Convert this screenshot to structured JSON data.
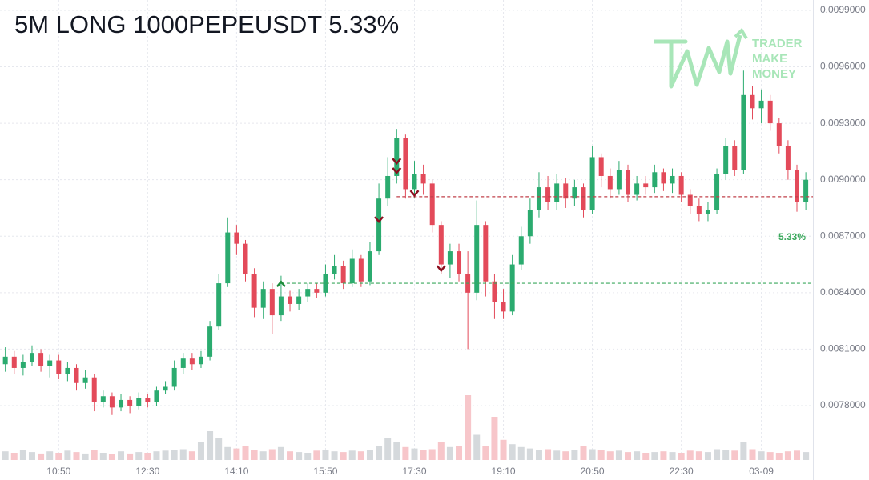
{
  "chart_data": {
    "type": "candlestick",
    "title": "5M LONG 1000PEPEUSDT 5.33%",
    "logo": [
      "TRADER",
      "MAKE",
      "MONEY"
    ],
    "pnl_label": "5.33%",
    "up_color": "#2bab6f",
    "down_color": "#e34a5a",
    "volume_up_color": "#d5d9dc",
    "volume_down_color": "#f7c6ca",
    "grid": true,
    "xlim": [
      -0.6,
      90.8
    ],
    "xticks": [
      {
        "value": 6,
        "label": "10:50"
      },
      {
        "value": 16,
        "label": "12:30"
      },
      {
        "value": 26,
        "label": "14:10"
      },
      {
        "value": 36,
        "label": "15:50"
      },
      {
        "value": 46,
        "label": "17:30"
      },
      {
        "value": 56,
        "label": "19:10"
      },
      {
        "value": 66,
        "label": "20:50"
      },
      {
        "value": 76,
        "label": "22:30"
      },
      {
        "value": 85,
        "label": "03-09"
      }
    ],
    "ylim": [
      0.007511,
      0.009955
    ],
    "yticks": [
      {
        "value": 0.0099,
        "label": "0.0099000"
      },
      {
        "value": 0.0096,
        "label": "0.0096000"
      },
      {
        "value": 0.0093,
        "label": "0.0093000"
      },
      {
        "value": 0.009,
        "label": "0.0090000"
      },
      {
        "value": 0.0087,
        "label": "0.0087000"
      },
      {
        "value": 0.0084,
        "label": "0.0084000"
      },
      {
        "value": 0.0081,
        "label": "0.0081000"
      },
      {
        "value": 0.0078,
        "label": "0.0078000"
      }
    ],
    "vlim": [
      0,
      100
    ],
    "open": [
      0.00802,
      0.00806,
      0.008,
      0.00803,
      0.00808,
      0.00801,
      0.00804,
      0.00797,
      0.008,
      0.00792,
      0.00795,
      0.00782,
      0.00785,
      0.00779,
      0.00783,
      0.0078,
      0.00784,
      0.00782,
      0.00788,
      0.0079,
      0.008,
      0.00805,
      0.00802,
      0.00806,
      0.00822,
      0.00845,
      0.00872,
      0.00866,
      0.0085,
      0.00832,
      0.00842,
      0.00828,
      0.00838,
      0.00834,
      0.00838,
      0.00842,
      0.0084,
      0.0085,
      0.00854,
      0.00845,
      0.00858,
      0.00846,
      0.00862,
      0.0089,
      0.00902,
      0.00922,
      0.00895,
      0.00903,
      0.00898,
      0.00876,
      0.00855,
      0.00862,
      0.0085,
      0.0084,
      0.00876,
      0.00846,
      0.00835,
      0.0083,
      0.00855,
      0.0087,
      0.00884,
      0.00896,
      0.00888,
      0.00898,
      0.0089,
      0.00896,
      0.00884,
      0.00912,
      0.00902,
      0.00895,
      0.00905,
      0.00892,
      0.00898,
      0.00896,
      0.00904,
      0.00898,
      0.00902,
      0.00892,
      0.00886,
      0.00882,
      0.00884,
      0.00903,
      0.00918,
      0.00905,
      0.00945,
      0.00938,
      0.00942,
      0.0093,
      0.00918,
      0.00905,
      0.00888
    ],
    "high": [
      0.00811,
      0.00809,
      0.00807,
      0.00812,
      0.0081,
      0.00807,
      0.00807,
      0.00803,
      0.00802,
      0.00799,
      0.00797,
      0.00788,
      0.00787,
      0.00786,
      0.00785,
      0.00787,
      0.00786,
      0.0079,
      0.00793,
      0.00804,
      0.00808,
      0.00808,
      0.00809,
      0.00825,
      0.0085,
      0.0088,
      0.00876,
      0.00868,
      0.00853,
      0.00846,
      0.00845,
      0.00849,
      0.00841,
      0.00842,
      0.00845,
      0.00845,
      0.00855,
      0.0086,
      0.00857,
      0.00863,
      0.0086,
      0.00867,
      0.00898,
      0.00912,
      0.00927,
      0.00924,
      0.0091,
      0.00908,
      0.009,
      0.00878,
      0.00866,
      0.00866,
      0.00862,
      0.00889,
      0.00878,
      0.0085,
      0.00842,
      0.0086,
      0.00875,
      0.0089,
      0.00904,
      0.00902,
      0.00903,
      0.00901,
      0.009,
      0.00898,
      0.00918,
      0.00914,
      0.00906,
      0.0091,
      0.00908,
      0.00902,
      0.00902,
      0.00908,
      0.00906,
      0.00906,
      0.00904,
      0.00895,
      0.0089,
      0.00888,
      0.00906,
      0.00922,
      0.00921,
      0.00958,
      0.0095,
      0.00948,
      0.00945,
      0.00933,
      0.00921,
      0.00908,
      0.00904
    ],
    "low": [
      0.00798,
      0.00797,
      0.00796,
      0.00801,
      0.00798,
      0.00795,
      0.00794,
      0.00793,
      0.00788,
      0.00789,
      0.00777,
      0.00779,
      0.00775,
      0.00777,
      0.00776,
      0.00778,
      0.00779,
      0.0078,
      0.00786,
      0.00788,
      0.00797,
      0.00799,
      0.008,
      0.00804,
      0.0082,
      0.00843,
      0.0086,
      0.00846,
      0.00827,
      0.00826,
      0.00818,
      0.00825,
      0.0083,
      0.00831,
      0.00835,
      0.00837,
      0.00838,
      0.00847,
      0.00842,
      0.00843,
      0.00843,
      0.00844,
      0.0086,
      0.00886,
      0.00898,
      0.0089,
      0.0089,
      0.00892,
      0.00872,
      0.0085,
      0.00848,
      0.00846,
      0.0081,
      0.00836,
      0.00838,
      0.00826,
      0.00826,
      0.00828,
      0.00852,
      0.00866,
      0.0088,
      0.00884,
      0.00884,
      0.00885,
      0.00886,
      0.0088,
      0.00882,
      0.00896,
      0.0089,
      0.00892,
      0.00888,
      0.00889,
      0.00892,
      0.00893,
      0.00894,
      0.00893,
      0.00888,
      0.00882,
      0.00878,
      0.00878,
      0.00882,
      0.009,
      0.00902,
      0.00903,
      0.00932,
      0.0093,
      0.00926,
      0.00914,
      0.009,
      0.00883,
      0.00884
    ],
    "close": [
      0.00806,
      0.008,
      0.00803,
      0.00808,
      0.00801,
      0.00804,
      0.00797,
      0.008,
      0.00792,
      0.00795,
      0.00782,
      0.00785,
      0.00779,
      0.00783,
      0.0078,
      0.00784,
      0.00782,
      0.00788,
      0.0079,
      0.008,
      0.00805,
      0.00802,
      0.00806,
      0.00822,
      0.00845,
      0.00872,
      0.00866,
      0.0085,
      0.00832,
      0.00842,
      0.00828,
      0.00838,
      0.00834,
      0.00838,
      0.00842,
      0.0084,
      0.0085,
      0.00854,
      0.00845,
      0.00858,
      0.00846,
      0.00862,
      0.0089,
      0.00902,
      0.00922,
      0.00895,
      0.00903,
      0.00898,
      0.00876,
      0.00855,
      0.00862,
      0.0085,
      0.0084,
      0.00876,
      0.00846,
      0.00835,
      0.0083,
      0.00855,
      0.0087,
      0.00884,
      0.00896,
      0.00888,
      0.00898,
      0.0089,
      0.00896,
      0.00884,
      0.00912,
      0.00902,
      0.00895,
      0.00905,
      0.00892,
      0.00898,
      0.00896,
      0.00904,
      0.00898,
      0.00902,
      0.00892,
      0.00886,
      0.00882,
      0.00884,
      0.00903,
      0.00918,
      0.00905,
      0.00945,
      0.00938,
      0.00942,
      0.0093,
      0.00918,
      0.00905,
      0.00888,
      0.009
    ],
    "volume": [
      12,
      10,
      14,
      11,
      9,
      12,
      10,
      13,
      11,
      9,
      14,
      10,
      8,
      12,
      9,
      11,
      10,
      12,
      13,
      14,
      15,
      12,
      25,
      40,
      30,
      18,
      16,
      20,
      14,
      12,
      15,
      18,
      12,
      11,
      10,
      13,
      14,
      12,
      11,
      13,
      12,
      14,
      20,
      30,
      25,
      18,
      16,
      14,
      15,
      25,
      18,
      20,
      90,
      35,
      20,
      60,
      28,
      22,
      18,
      16,
      14,
      15,
      13,
      12,
      14,
      20,
      15,
      14,
      12,
      13,
      11,
      12,
      10,
      11,
      12,
      11,
      10,
      13,
      12,
      11,
      15,
      14,
      13,
      25,
      15,
      12,
      11,
      10,
      12,
      13,
      11
    ],
    "entry_line": {
      "price": 0.00845,
      "start": 31,
      "color": "#3aa85c"
    },
    "exit_line": {
      "price": 0.00891,
      "start": 44,
      "color": "#c0404a"
    },
    "markers": [
      {
        "index": 31,
        "price": 0.008445,
        "dir": "up",
        "color": "#1e8c3a"
      },
      {
        "index": 42,
        "price": 0.00879,
        "dir": "down",
        "color": "#8b1020"
      },
      {
        "index": 44,
        "price": 0.0091,
        "dir": "down",
        "color": "#8b1020"
      },
      {
        "index": 44,
        "price": 0.00905,
        "dir": "down",
        "color": "#8b1020"
      },
      {
        "index": 46,
        "price": 0.00893,
        "dir": "down",
        "color": "#8b1020"
      },
      {
        "index": 49,
        "price": 0.00853,
        "dir": "down",
        "color": "#8b1020"
      }
    ]
  }
}
